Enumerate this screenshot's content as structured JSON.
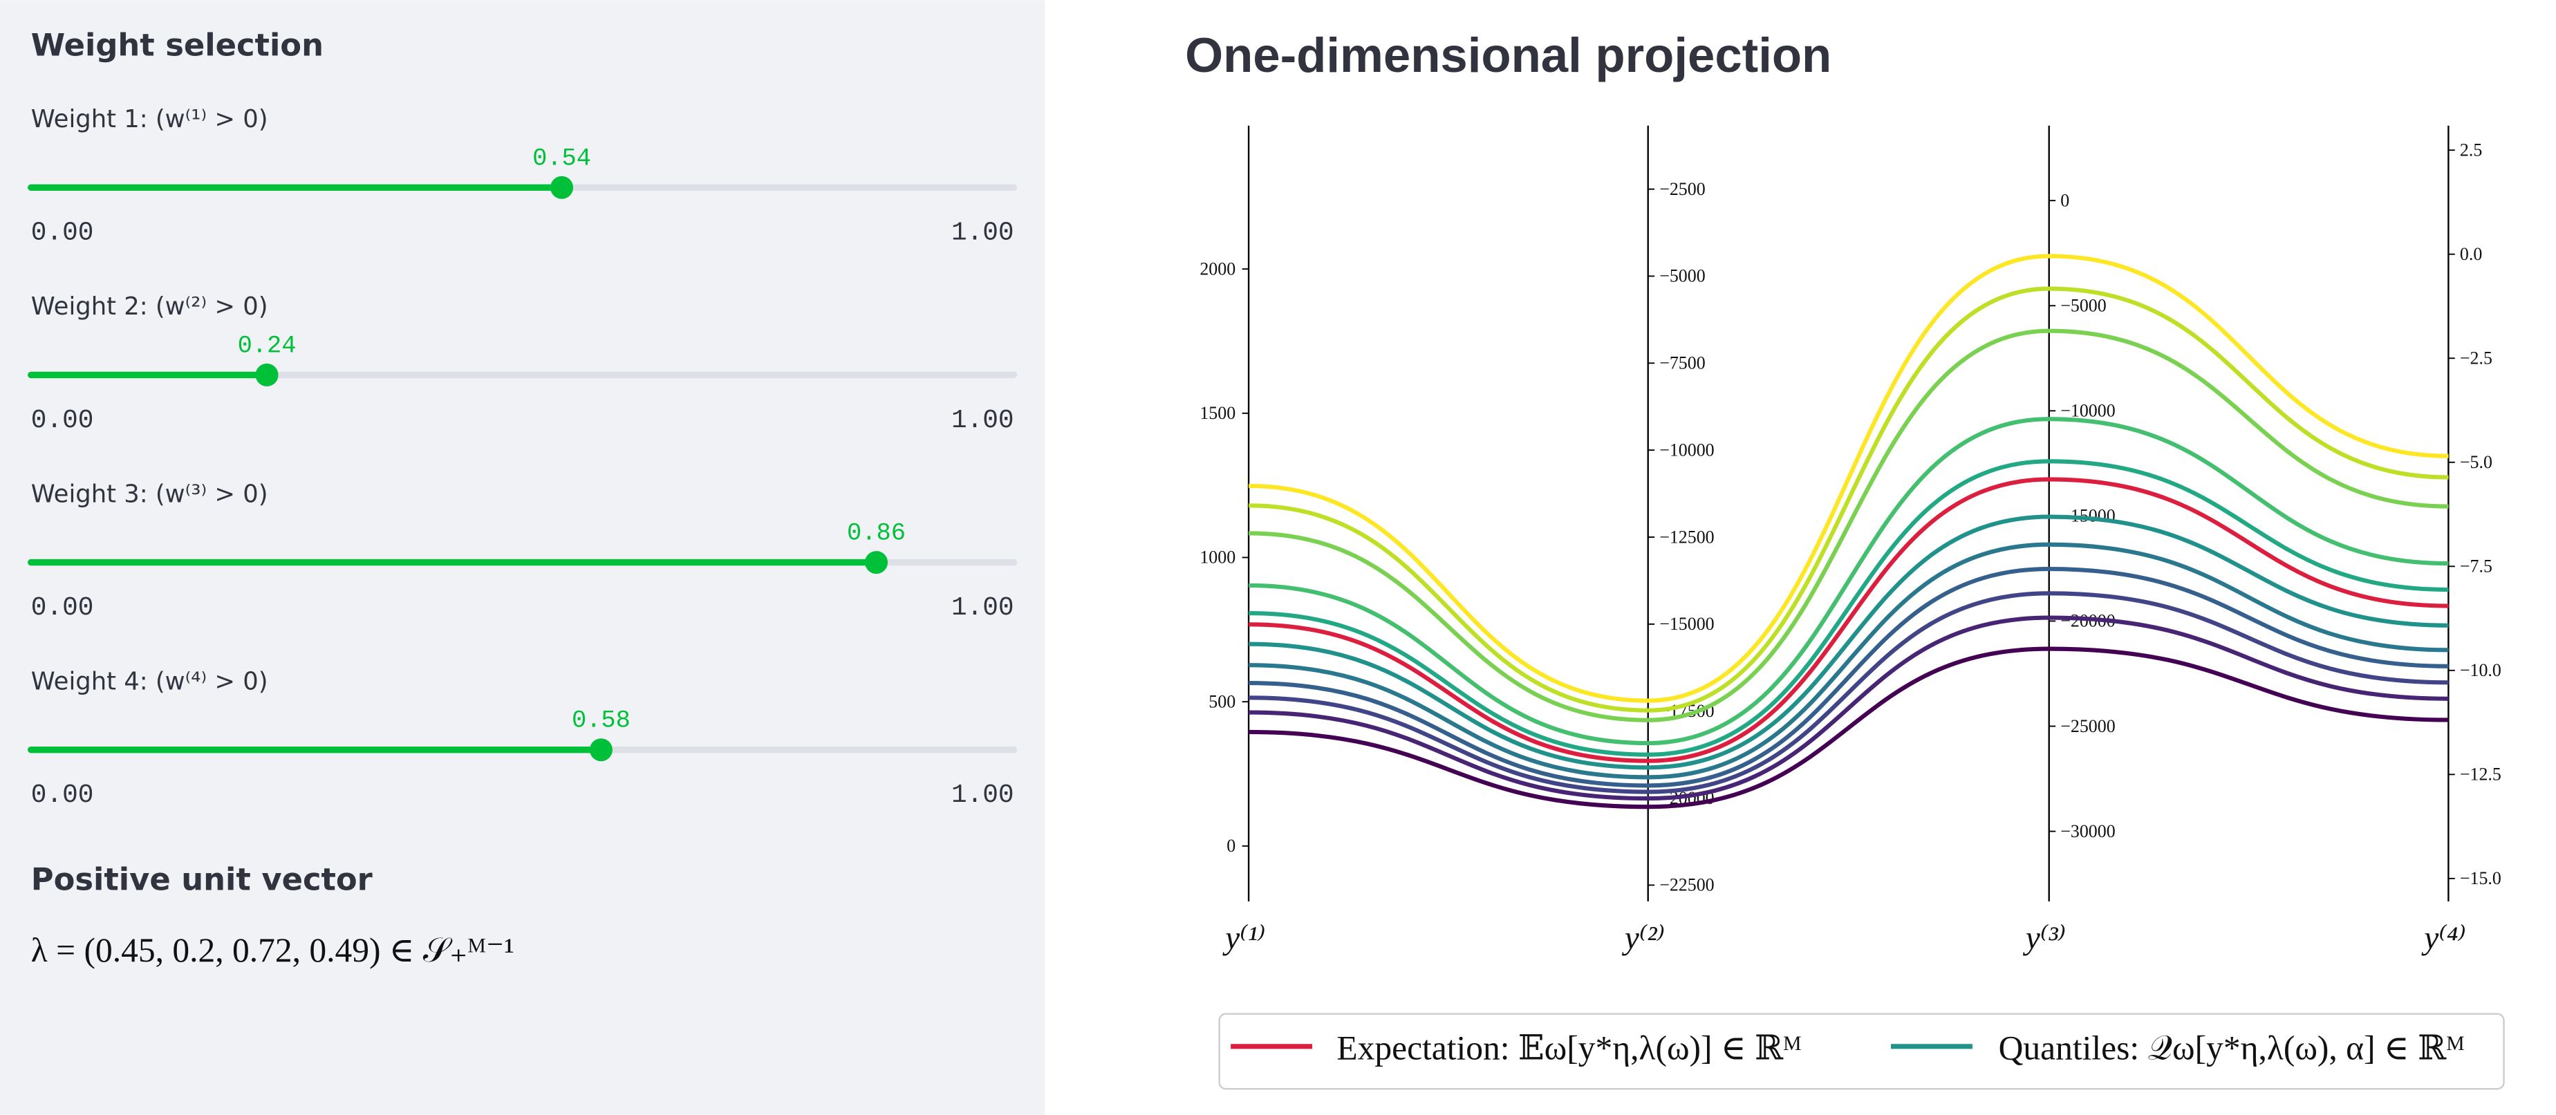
{
  "sidebar": {
    "title": "Weight selection",
    "sliders": [
      {
        "label": "Weight 1: (w⁽¹⁾ > 0)",
        "value": 0.54,
        "min": {
          "value": 0,
          "label": "0.00"
        },
        "max": {
          "value": 1,
          "label": "1.00"
        }
      },
      {
        "label": "Weight 2: (w⁽²⁾ > 0)",
        "value": 0.24,
        "min": {
          "value": 0,
          "label": "0.00"
        },
        "max": {
          "value": 1,
          "label": "1.00"
        }
      },
      {
        "label": "Weight 3: (w⁽³⁾ > 0)",
        "value": 0.86,
        "min": {
          "value": 0,
          "label": "0.00"
        },
        "max": {
          "value": 1,
          "label": "1.00"
        }
      },
      {
        "label": "Weight 4: (w⁽⁴⁾ > 0)",
        "value": 0.58,
        "min": {
          "value": 0,
          "label": "0.00"
        },
        "max": {
          "value": 1,
          "label": "1.00"
        }
      }
    ],
    "vector_title": "Positive unit vector",
    "vector": "λ = (0.45, 0.2, 0.72, 0.49) ∈ 𝒮₊ᴹ⁻¹"
  },
  "chart_data": {
    "type": "parallel",
    "title": "One-dimensional projection",
    "axes": [
      {
        "label": "y⁽¹⁾",
        "ylim": [
          -192,
          2497
        ],
        "yticks": [
          0,
          500,
          1000,
          1500,
          2000
        ]
      },
      {
        "label": "y⁽²⁾",
        "ylim": [
          -22968,
          -674
        ],
        "yticks": [
          {
            "value": -2500,
            "label": "−2500"
          },
          {
            "value": -5000,
            "label": "−5000"
          },
          {
            "value": -7500,
            "label": "−7500"
          },
          {
            "value": -10000,
            "label": "−10000"
          },
          {
            "value": -12500,
            "label": "−12500"
          },
          {
            "value": -15000,
            "label": "−15000"
          },
          {
            "value": -17500,
            "label": "−17500"
          },
          {
            "value": -20000,
            "label": "−20000"
          },
          {
            "value": -22500,
            "label": "−22500"
          }
        ]
      },
      {
        "label": "y⁽³⁾",
        "ylim": [
          -33333,
          3566
        ],
        "yticks": [
          0,
          {
            "value": -5000,
            "label": "−5000"
          },
          {
            "value": -10000,
            "label": "−10000"
          },
          {
            "value": -15000,
            "label": "−15000"
          },
          {
            "value": -20000,
            "label": "−20000"
          },
          {
            "value": -25000,
            "label": "−25000"
          },
          {
            "value": -30000,
            "label": "−30000"
          }
        ]
      },
      {
        "label": "y⁽⁴⁾",
        "ylim": [
          -15.55,
          3.09
        ],
        "yticks": [
          {
            "value": 2.5,
            "label": "2.5"
          },
          {
            "value": 0,
            "label": "0.0"
          },
          {
            "value": -2.5,
            "label": "−2.5"
          },
          {
            "value": -5,
            "label": "−5.0"
          },
          {
            "value": -7.5,
            "label": "−7.5"
          },
          {
            "value": -10,
            "label": "−10.0"
          },
          {
            "value": -12.5,
            "label": "−12.5"
          },
          {
            "value": -15,
            "label": "−15.0"
          }
        ]
      }
    ],
    "quantiles": {
      "name": "Quantiles:  𝒬ω[y*η,λ(ω), α] ∈ ℝᴹ",
      "color": "#21918c",
      "series": [
        {
          "color": "#fde725",
          "values": [
            1248,
            -17200,
            -2640,
            -4.85
          ]
        },
        {
          "color": "#bddf26",
          "values": [
            1180,
            -17480,
            -4190,
            -5.36
          ]
        },
        {
          "color": "#7ad151",
          "values": [
            1084,
            -17760,
            -6200,
            -6.06
          ]
        },
        {
          "color": "#44bf70",
          "values": [
            903,
            -18420,
            -10390,
            -7.43
          ]
        },
        {
          "color": "#22a884",
          "values": [
            807,
            -18750,
            -12400,
            -8.06
          ]
        },
        {
          "color": "#21918c",
          "values": [
            700,
            -19120,
            -15040,
            -8.92
          ]
        },
        {
          "color": "#2a788e",
          "values": [
            627,
            -19400,
            -16360,
            -9.51
          ]
        },
        {
          "color": "#355f8d",
          "values": [
            565,
            -19640,
            -17520,
            -9.9
          ]
        },
        {
          "color": "#414487",
          "values": [
            514,
            -19820,
            -18680,
            -10.29
          ]
        },
        {
          "color": "#482475",
          "values": [
            463,
            -20010,
            -19840,
            -10.68
          ]
        },
        {
          "color": "#440154",
          "values": [
            395,
            -20250,
            -21320,
            -11.19
          ]
        }
      ]
    },
    "expectation": {
      "name": "Expectation:  𝔼ω[y*η,λ(ω)] ∈ ℝᴹ",
      "color": "#dc1f3f",
      "values": [
        768,
        -18930,
        -13260,
        -8.45
      ]
    }
  }
}
